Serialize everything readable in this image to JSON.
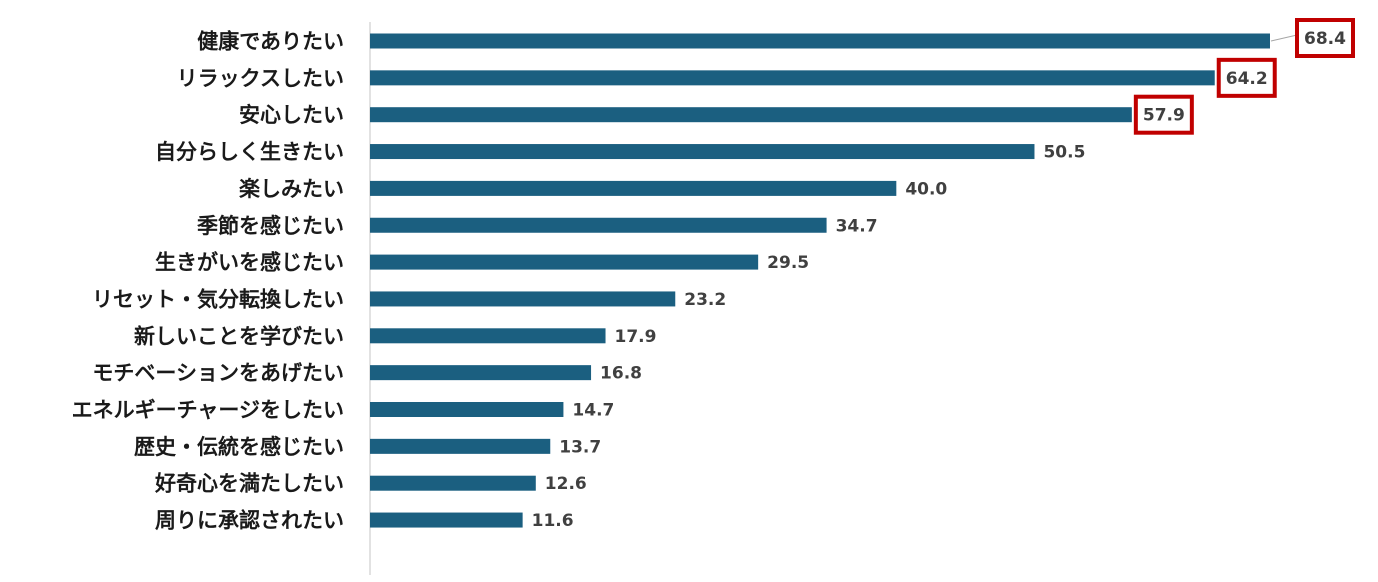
{
  "chart_data": {
    "type": "bar",
    "orientation": "horizontal",
    "categories": [
      "健康でありたい",
      "リラックスしたい",
      "安心したい",
      "自分らしく生きたい",
      "楽しみたい",
      "季節を感じたい",
      "生きがいを感じたい",
      "リセット・気分転換したい",
      "新しいことを学びたい",
      "モチベーションをあげたい",
      "エネルギーチャージをしたい",
      "歴史・伝統を感じたい",
      "好奇心を満たしたい",
      "周りに承認されたい"
    ],
    "values": [
      68.4,
      64.2,
      57.9,
      50.5,
      40.0,
      34.7,
      29.5,
      23.2,
      17.9,
      16.8,
      14.7,
      13.7,
      12.6,
      11.6
    ],
    "value_labels": [
      "68.4",
      "64.2",
      "57.9",
      "50.5",
      "40.0",
      "34.7",
      "29.5",
      "23.2",
      "17.9",
      "16.8",
      "14.7",
      "13.7",
      "12.6",
      "11.6"
    ],
    "highlighted": [
      0,
      1,
      2
    ],
    "title": "",
    "xlabel": "",
    "ylabel": "",
    "xlim": [
      0,
      70
    ],
    "grid": false,
    "legend": "none",
    "colors": {
      "bar": "#1b5f80",
      "highlight_box": "#c00000",
      "axis": "#d9d9d9",
      "value_text": "#404040",
      "category_text": "#1a1a1a"
    }
  }
}
